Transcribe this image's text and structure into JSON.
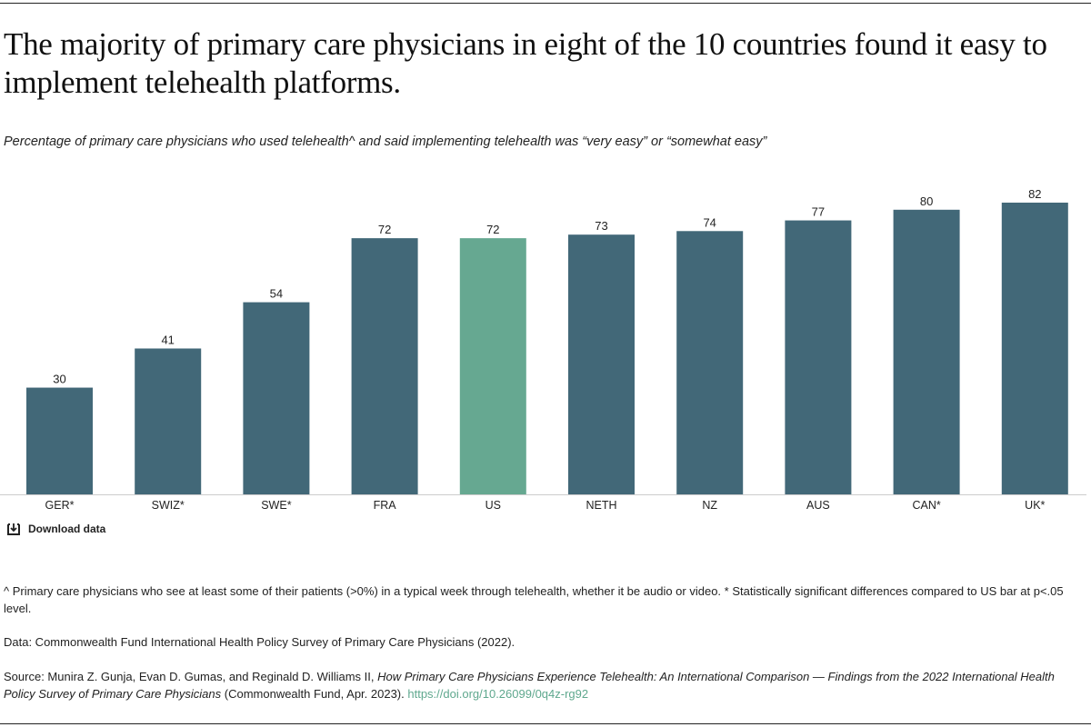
{
  "title": "The majority of primary care physicians in eight of the 10 countries found it easy to implement telehealth platforms.",
  "subtitle": "Percentage of primary care physicians who used telehealth^ and said implementing telehealth was “very easy” or “somewhat easy”",
  "download_label": "Download data",
  "download_icon": "download-icon",
  "footnote": "^ Primary care physicians who see at least some of their patients (>0%) in a typical week through telehealth, whether it be audio or video. * Statistically significant differences compared to US bar at p<.05 level.",
  "data_note": "Data: Commonwealth Fund International Health Policy Survey of Primary Care Physicians (2022).",
  "source": {
    "prefix": "Source: Munira Z. Gunja, Evan D. Gumas, and Reginald D. Williams II, ",
    "italic": "How Primary Care Physicians Experience Telehealth: An International Comparison — Findings from the 2022 International Health Policy Survey of Primary Care Physicians",
    "suffix": " (Commonwealth Fund, Apr. 2023). ",
    "link": "https://doi.org/10.26099/0q4z-rg92"
  },
  "colors": {
    "bar": "#426878",
    "highlight": "#66a891",
    "link": "#5fa88e"
  },
  "chart_data": {
    "type": "bar",
    "categories": [
      "GER*",
      "SWIZ*",
      "SWE*",
      "FRA",
      "US",
      "NETH",
      "NZ",
      "AUS",
      "CAN*",
      "UK*"
    ],
    "values": [
      30,
      41,
      54,
      72,
      72,
      73,
      74,
      77,
      80,
      82
    ],
    "highlight": "US",
    "ylim": [
      0,
      100
    ],
    "grid": false,
    "data_labels": true
  }
}
